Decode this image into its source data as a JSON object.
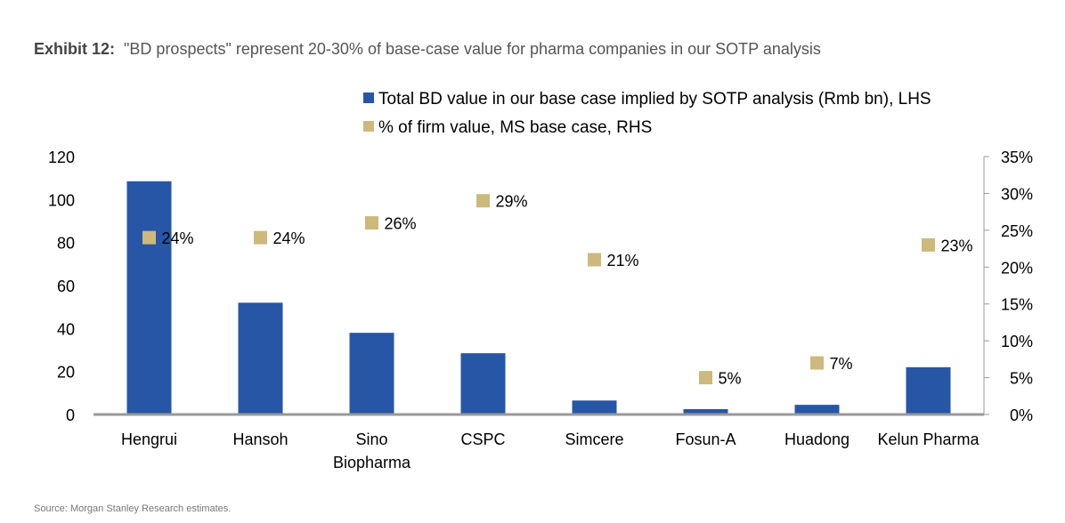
{
  "exhibit": {
    "label": "Exhibit 12:",
    "title": "\"BD prospects\" represent 20-30% of base-case value for pharma companies in our SOTP analysis"
  },
  "source": "Source: Morgan Stanley Research estimates.",
  "colors": {
    "bar": "#2756a6",
    "marker": "#cdb97c",
    "axis": "#999999"
  },
  "chart_data": {
    "type": "bar",
    "categories": [
      [
        "Hengrui"
      ],
      [
        "Hansoh"
      ],
      [
        "Sino",
        "Biopharma"
      ],
      [
        "CSPC"
      ],
      [
        "Simcere"
      ],
      [
        "Fosun-A"
      ],
      [
        "Huadong"
      ],
      [
        "Kelun Pharma"
      ]
    ],
    "series": [
      {
        "name": "Total BD value in our base case implied by SOTP analysis (Rmb bn), LHS",
        "type": "bar",
        "axis": "left",
        "values": [
          108.5,
          52,
          38,
          28.5,
          6.5,
          2.5,
          4.5,
          22
        ]
      },
      {
        "name": "% of firm value, MS base case, RHS",
        "type": "scatter",
        "axis": "right",
        "values": [
          24,
          24,
          26,
          29,
          null,
          5,
          7,
          23
        ],
        "values_full": [
          24,
          24,
          26,
          29,
          21,
          5,
          7,
          23
        ],
        "labels": [
          "24%",
          "24%",
          "26%",
          "29%",
          "21%",
          "5%",
          "7%",
          "23%"
        ]
      }
    ],
    "y_left": {
      "ylim": [
        0,
        120
      ],
      "ticks": [
        "0",
        "20",
        "40",
        "60",
        "80",
        "100",
        "120"
      ],
      "tick_values": [
        0,
        20,
        40,
        60,
        80,
        100,
        120
      ]
    },
    "y_right": {
      "ylim": [
        0,
        35
      ],
      "ticks": [
        "0%",
        "5%",
        "10%",
        "15%",
        "20%",
        "25%",
        "30%",
        "35%"
      ],
      "tick_values": [
        0,
        5,
        10,
        15,
        20,
        25,
        30,
        35
      ]
    },
    "legend_position": "top",
    "grid": false
  }
}
